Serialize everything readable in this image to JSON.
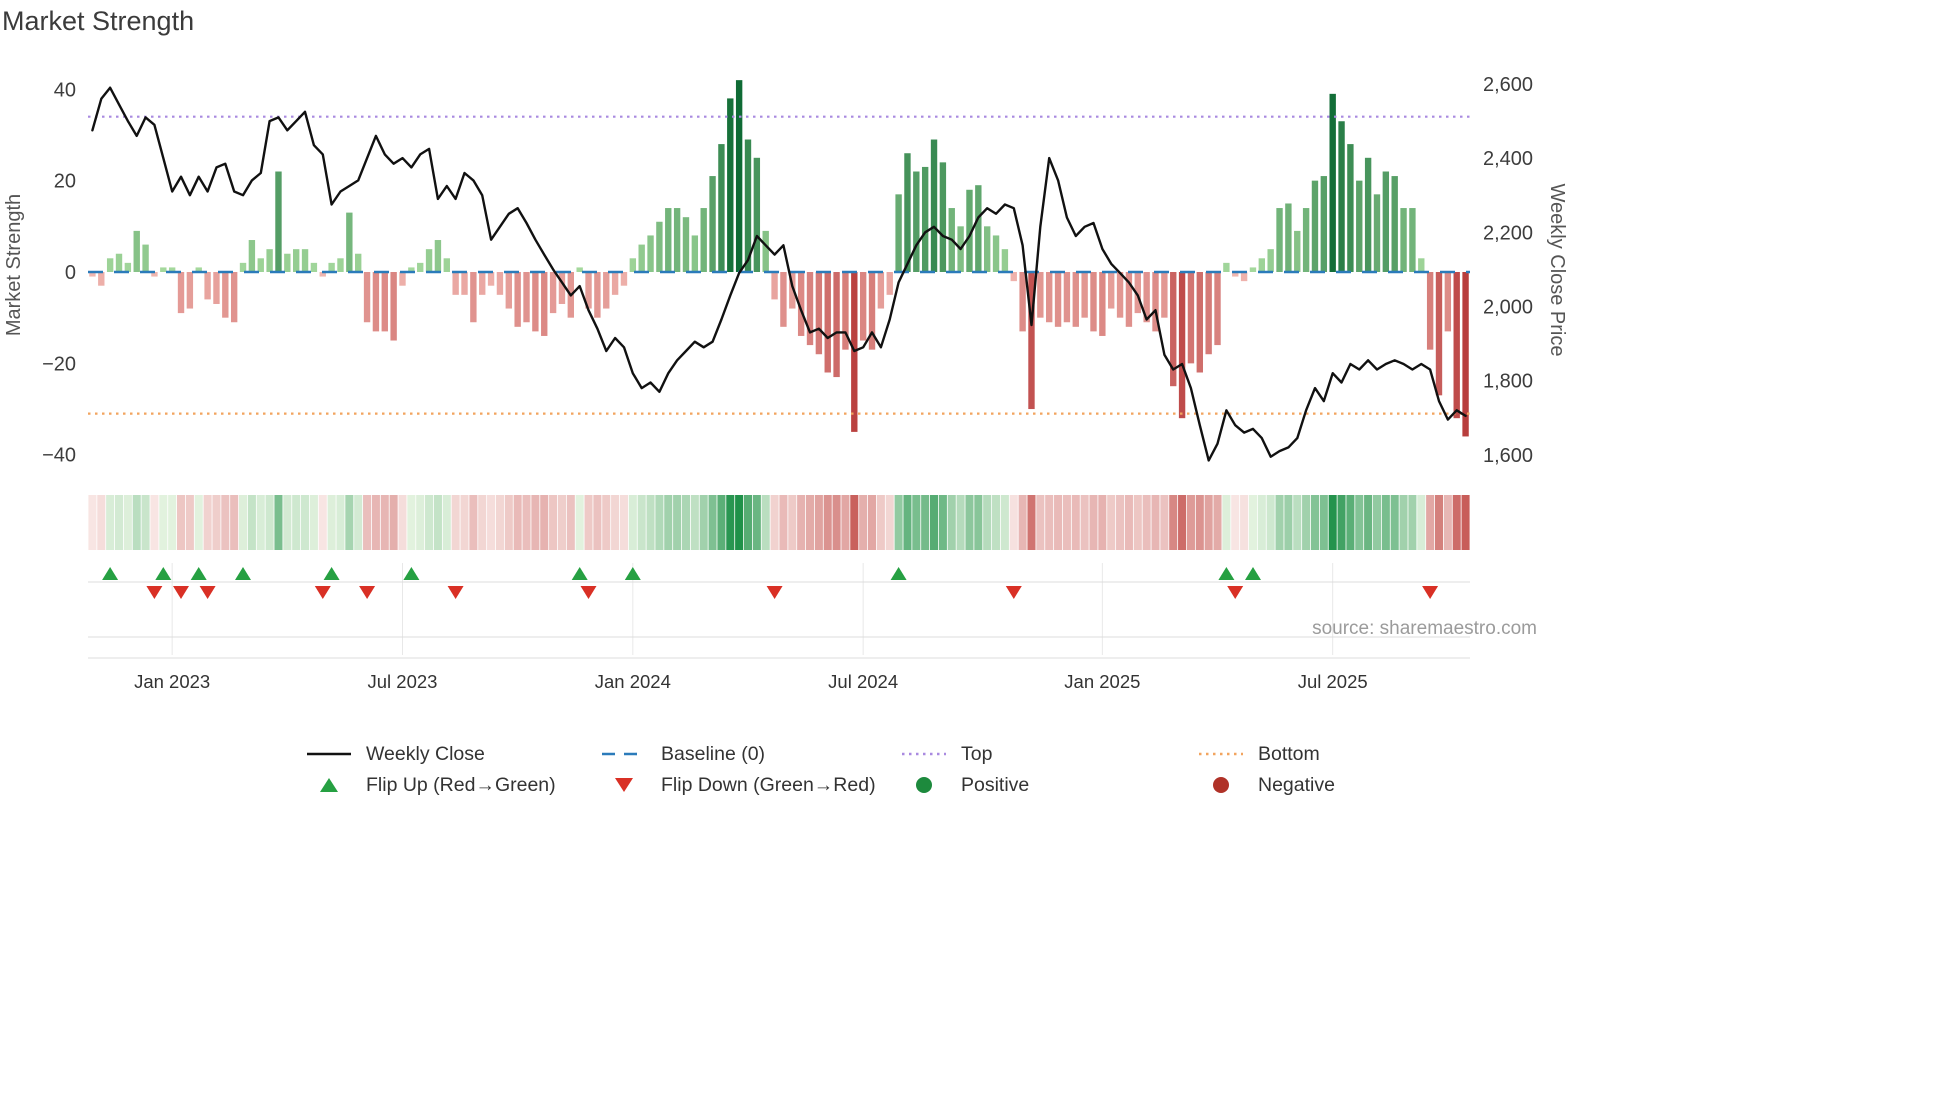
{
  "title": "Market Strength",
  "source_text": "source: sharemaestro.com",
  "axes": {
    "left_label": "Market Strength",
    "right_label": "Weekly Close Price"
  },
  "legend": {
    "weekly_close": "Weekly Close",
    "baseline": "Baseline (0)",
    "top": "Top",
    "bottom": "Bottom",
    "flip_up": "Flip Up (Red→Green)",
    "flip_down": "Flip Down (Green→Red)",
    "positive": "Positive",
    "negative": "Negative"
  },
  "colors": {
    "weekly_close_line": "#111111",
    "baseline": "#2b7bba",
    "top_line": "#a98ae0",
    "bottom_line": "#f2a45f",
    "flip_up": "#26a042",
    "flip_down": "#d93025",
    "positive_dot": "#1d8a3d",
    "negative_dot": "#b03228",
    "bar_pos_low": "#a8db9f",
    "bar_pos_high": "#0f6b35",
    "bar_neg_low": "#f2b9b3",
    "bar_neg_high": "#b23030",
    "heat_pos_low": "#e7f4e2",
    "heat_pos_high": "#1f9149",
    "heat_neg_low": "#f9e9e7",
    "heat_neg_high": "#c24d49"
  },
  "chart_data": {
    "type": "bar",
    "subtype": "weekly bars + overlaid line on secondary axis + heatmap strip + flip markers",
    "x_unit": "week index (weekly data, ~Nov 2022 to ~Oct 2025)",
    "x_tick_labels": [
      "Jan 2023",
      "Jul 2023",
      "Jan 2024",
      "Jul 2024",
      "Jan 2025",
      "Jul 2025"
    ],
    "x_tick_weeks": [
      9,
      35,
      61,
      87,
      114,
      140
    ],
    "left_axis": {
      "label": "Market Strength",
      "ticks": [
        40,
        20,
        0,
        -20,
        -40
      ],
      "tick_labels": [
        "40",
        "20",
        "0",
        "−20",
        "−40"
      ],
      "range": [
        -44,
        44
      ]
    },
    "right_axis": {
      "label": "Weekly Close Price",
      "ticks": [
        2600,
        2400,
        2200,
        2000,
        1800,
        1600
      ],
      "tick_labels": [
        "2,600",
        "2,400",
        "2,200",
        "2,000",
        "1,800",
        "1,600"
      ],
      "range": [
        1551,
        2635
      ]
    },
    "baseline": 0,
    "top_threshold": 34,
    "bottom_threshold": -31,
    "series": [
      {
        "name": "Market Strength",
        "type": "bar",
        "axis": "left",
        "values": [
          -1,
          -3,
          3,
          4,
          2,
          9,
          6,
          -1,
          1,
          1,
          -9,
          -8,
          1,
          -6,
          -7,
          -10,
          -11,
          2,
          7,
          3,
          5,
          22,
          4,
          5,
          5,
          2,
          -1,
          2,
          3,
          13,
          4,
          -11,
          -13,
          -13,
          -15,
          -3,
          1,
          2,
          5,
          7,
          3,
          -5,
          -5,
          -11,
          -5,
          -3,
          -5,
          -8,
          -12,
          -11,
          -13,
          -14,
          -9,
          -7,
          -10,
          1,
          -8,
          -10,
          -8,
          -5,
          -3,
          3,
          6,
          8,
          11,
          14,
          14,
          12,
          8,
          14,
          21,
          28,
          38,
          42,
          29,
          25,
          9,
          -6,
          -12,
          -8,
          -14,
          -16,
          -18,
          -22,
          -23,
          -17,
          -35,
          -15,
          -17,
          -8,
          -5,
          17,
          26,
          22,
          23,
          29,
          24,
          14,
          10,
          18,
          19,
          10,
          8,
          5,
          -2,
          -13,
          -30,
          -10,
          -11,
          -12,
          -11,
          -12,
          -10,
          -13,
          -14,
          -8,
          -10,
          -12,
          -9,
          -11,
          -13,
          -10,
          -25,
          -32,
          -20,
          -22,
          -18,
          -16,
          2,
          -1,
          -2,
          1,
          3,
          5,
          14,
          15,
          9,
          14,
          20,
          21,
          39,
          33,
          28,
          20,
          25,
          17,
          22,
          21,
          14,
          14,
          3,
          -17,
          -27,
          -13,
          -32,
          -36
        ]
      },
      {
        "name": "Weekly Close",
        "type": "line",
        "axis": "right",
        "values": [
          2475,
          2560,
          2590,
          2545,
          2500,
          2460,
          2510,
          2490,
          2400,
          2310,
          2350,
          2300,
          2350,
          2310,
          2375,
          2385,
          2310,
          2300,
          2340,
          2360,
          2500,
          2510,
          2475,
          2500,
          2525,
          2435,
          2410,
          2275,
          2310,
          2325,
          2340,
          2400,
          2460,
          2410,
          2385,
          2400,
          2375,
          2410,
          2425,
          2290,
          2325,
          2290,
          2360,
          2340,
          2300,
          2180,
          2215,
          2250,
          2265,
          2225,
          2180,
          2140,
          2100,
          2065,
          2030,
          2055,
          1990,
          1940,
          1880,
          1915,
          1890,
          1820,
          1780,
          1795,
          1770,
          1820,
          1855,
          1880,
          1905,
          1890,
          1905,
          1965,
          2030,
          2090,
          2125,
          2190,
          2165,
          2140,
          2165,
          2055,
          1990,
          1930,
          1940,
          1915,
          1930,
          1930,
          1880,
          1890,
          1930,
          1890,
          1965,
          2065,
          2115,
          2165,
          2200,
          2215,
          2190,
          2180,
          2155,
          2190,
          2240,
          2265,
          2250,
          2275,
          2265,
          2165,
          1950,
          2215,
          2400,
          2340,
          2240,
          2190,
          2215,
          2225,
          2155,
          2115,
          2090,
          2065,
          2030,
          1965,
          1990,
          1870,
          1830,
          1845,
          1780,
          1680,
          1585,
          1630,
          1720,
          1680,
          1660,
          1670,
          1645,
          1595,
          1610,
          1620,
          1645,
          1720,
          1780,
          1745,
          1820,
          1795,
          1845,
          1830,
          1855,
          1830,
          1845,
          1855,
          1845,
          1830,
          1845,
          1830,
          1745,
          1695,
          1720,
          1705
        ]
      }
    ],
    "flip_up_weeks": [
      2,
      8,
      12,
      17,
      27,
      36,
      55,
      61,
      91,
      128,
      131
    ],
    "flip_down_weeks": [
      7,
      10,
      13,
      26,
      31,
      41,
      56,
      77,
      104,
      129,
      151
    ]
  }
}
